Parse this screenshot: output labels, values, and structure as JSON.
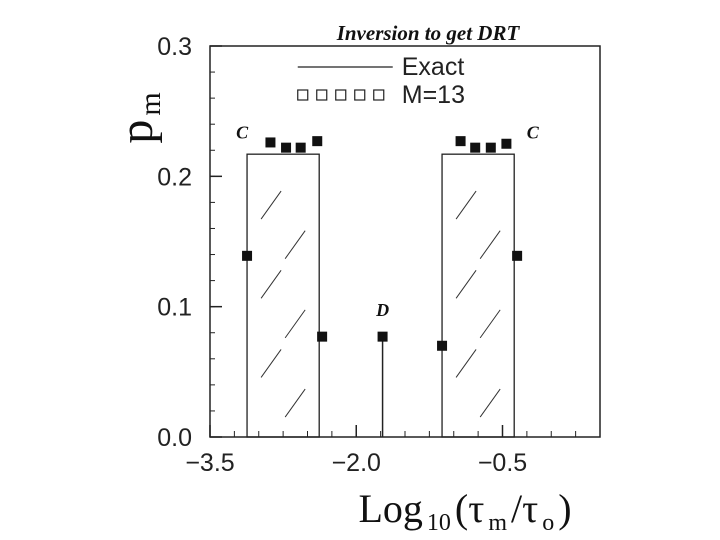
{
  "chart_data": {
    "type": "bar",
    "title": "Inversion to get DRT",
    "xlabel_main": "Log",
    "xlabel_sub": "10",
    "xlabel_paren": "(τ",
    "xlabel_m": "m",
    "xlabel_slash": "/τ",
    "xlabel_o": "o",
    "xlabel_close": ")",
    "ylabel_main": "p",
    "ylabel_sub": "m",
    "xlim": [
      -3.5,
      0.5
    ],
    "ylim": [
      0.0,
      0.3
    ],
    "x_ticks": [
      -3.5,
      -2.0,
      -0.5
    ],
    "x_tick_labels": [
      "−3.5",
      "−2.0",
      "−0.5"
    ],
    "x_minor_step": 0.25,
    "y_ticks": [
      0.0,
      0.1,
      0.2,
      0.3
    ],
    "y_tick_labels": [
      "0.0",
      "0.1",
      "0.2",
      "0.3"
    ],
    "y_minor_step": 0.02,
    "legend": [
      {
        "label": "Exact",
        "style": "line"
      },
      {
        "label": "M=13",
        "style": "squares"
      }
    ],
    "legend_position": "top-center",
    "exact_boxes": [
      {
        "x_start": -3.12,
        "x_end": -2.38,
        "height": 0.217
      },
      {
        "x_start": -1.12,
        "x_end": -0.38,
        "height": 0.217
      }
    ],
    "exact_spike": {
      "x": -1.73,
      "height": 0.077
    },
    "series": [
      {
        "name": "M=13",
        "points": [
          {
            "x": -3.12,
            "y": 0.139
          },
          {
            "x": -2.88,
            "y": 0.226
          },
          {
            "x": -2.72,
            "y": 0.222
          },
          {
            "x": -2.57,
            "y": 0.222
          },
          {
            "x": -2.4,
            "y": 0.227
          },
          {
            "x": -2.35,
            "y": 0.077
          },
          {
            "x": -1.73,
            "y": 0.077
          },
          {
            "x": -1.12,
            "y": 0.07
          },
          {
            "x": -0.93,
            "y": 0.227
          },
          {
            "x": -0.78,
            "y": 0.222
          },
          {
            "x": -0.62,
            "y": 0.222
          },
          {
            "x": -0.46,
            "y": 0.225
          },
          {
            "x": -0.35,
            "y": 0.139
          }
        ]
      }
    ],
    "annotations": [
      {
        "text": "C",
        "x": -3.17,
        "y": 0.229
      },
      {
        "text": "C",
        "x": -0.19,
        "y": 0.229
      },
      {
        "text": "D",
        "x": -1.73,
        "y": 0.093
      }
    ]
  }
}
